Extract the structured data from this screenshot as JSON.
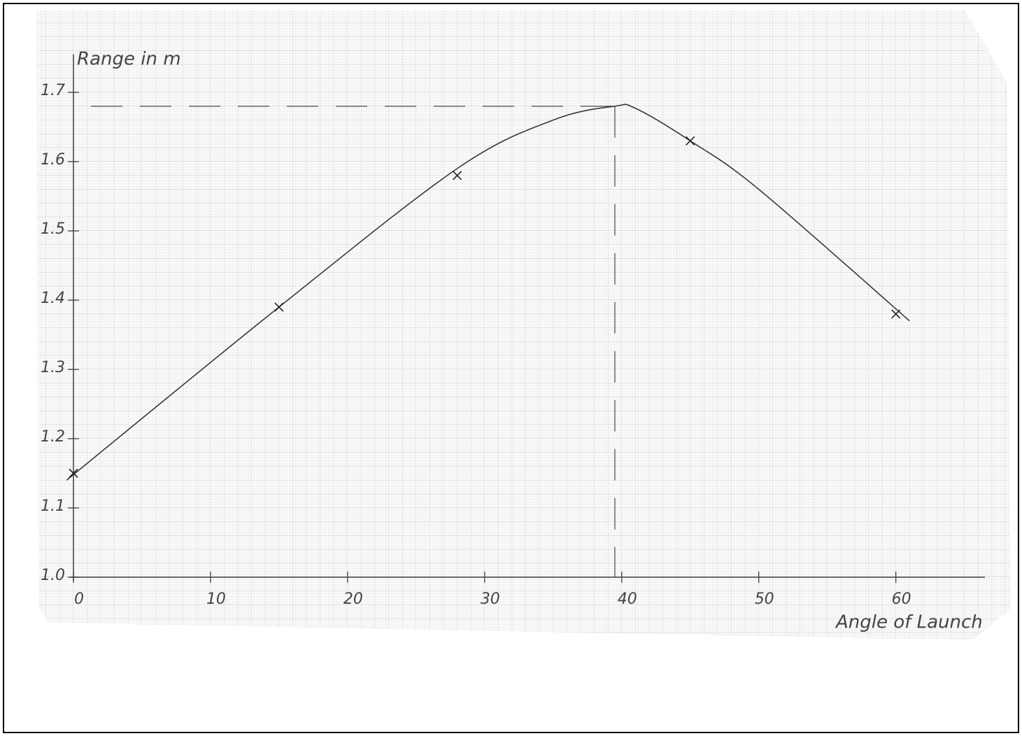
{
  "chart_data": {
    "type": "line",
    "y_label": "Range in m",
    "x_label": "Angle of Launch",
    "x": [
      0,
      15,
      28,
      45,
      60
    ],
    "values": [
      1.15,
      1.39,
      1.58,
      1.63,
      1.38
    ],
    "color": "#3a3a3a",
    "curve": {
      "x": [
        -0.5,
        15,
        28,
        35,
        39.5,
        41,
        45,
        50,
        61
      ],
      "y": [
        1.14,
        1.39,
        1.59,
        1.66,
        1.68,
        1.677,
        1.63,
        1.56,
        1.37
      ]
    },
    "reference_lines": {
      "x": 39.5,
      "y": 1.68
    },
    "xlim": [
      0,
      66.5
    ],
    "ylim": [
      1,
      1.75
    ],
    "xticks": [
      0,
      10,
      20,
      30,
      40,
      50,
      60
    ],
    "yticks": [
      {
        "value": 1,
        "label": "1.0"
      },
      1.1,
      1.2,
      1.3,
      1.4,
      1.5,
      1.6,
      1.7
    ],
    "grid": true
  }
}
